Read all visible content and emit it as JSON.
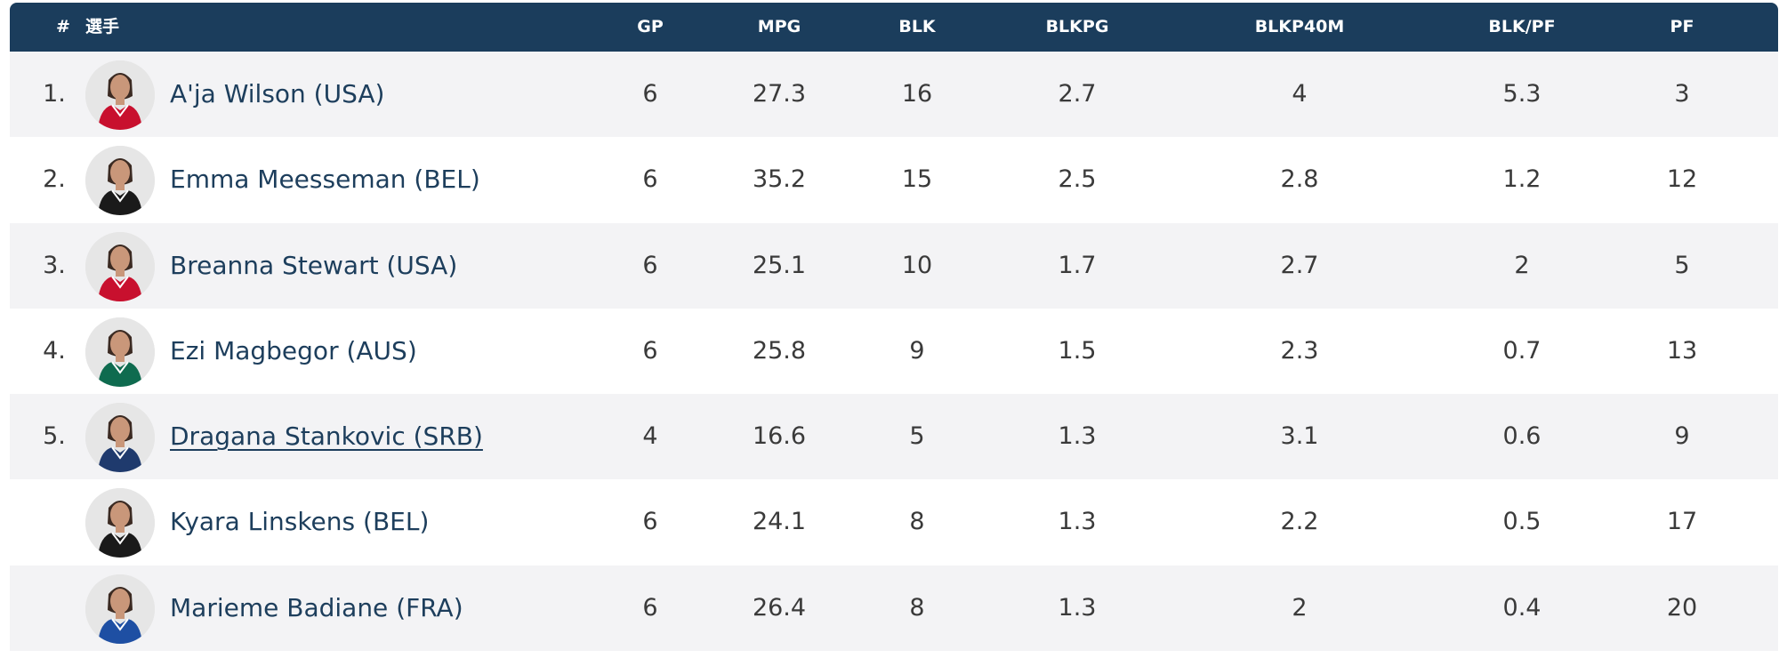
{
  "table": {
    "headers": {
      "rank": "#",
      "player": "選手",
      "gp": "GP",
      "mpg": "MPG",
      "blk": "BLK",
      "blkpg": "BLKPG",
      "blkp40m": "BLKP40M",
      "blkpf": "BLK/PF",
      "pf": "PF"
    },
    "rows": [
      {
        "rank": "1.",
        "name": "A'ja Wilson (USA)",
        "gp": "6",
        "mpg": "27.3",
        "blk": "16",
        "blkpg": "2.7",
        "blkp40m": "4",
        "blkpf": "5.3",
        "pf": "3",
        "jersey_color": "#c8102e"
      },
      {
        "rank": "2.",
        "name": "Emma Meesseman (BEL)",
        "gp": "6",
        "mpg": "35.2",
        "blk": "15",
        "blkpg": "2.5",
        "blkp40m": "2.8",
        "blkpf": "1.2",
        "pf": "12",
        "jersey_color": "#1a1a1a"
      },
      {
        "rank": "3.",
        "name": "Breanna Stewart (USA)",
        "gp": "6",
        "mpg": "25.1",
        "blk": "10",
        "blkpg": "1.7",
        "blkp40m": "2.7",
        "blkpf": "2",
        "pf": "5",
        "jersey_color": "#c8102e"
      },
      {
        "rank": "4.",
        "name": "Ezi Magbegor (AUS)",
        "gp": "6",
        "mpg": "25.8",
        "blk": "9",
        "blkpg": "1.5",
        "blkp40m": "2.3",
        "blkpf": "0.7",
        "pf": "13",
        "jersey_color": "#0f6b4f"
      },
      {
        "rank": "5.",
        "name": "Dragana Stankovic (SRB)",
        "gp": "4",
        "mpg": "16.6",
        "blk": "5",
        "blkpg": "1.3",
        "blkp40m": "3.1",
        "blkpf": "0.6",
        "pf": "9",
        "jersey_color": "#1f3a6d"
      },
      {
        "rank": "",
        "name": "Kyara Linskens (BEL)",
        "gp": "6",
        "mpg": "24.1",
        "blk": "8",
        "blkpg": "1.3",
        "blkp40m": "2.2",
        "blkpf": "0.5",
        "pf": "17",
        "jersey_color": "#1a1a1a"
      },
      {
        "rank": "",
        "name": "Marieme Badiane (FRA)",
        "gp": "6",
        "mpg": "26.4",
        "blk": "8",
        "blkpg": "1.3",
        "blkp40m": "2",
        "blkpf": "0.4",
        "pf": "20",
        "jersey_color": "#1e4fa3"
      }
    ]
  },
  "colors": {
    "header_bg": "#1b3d5c",
    "odd_row_bg": "#f3f3f5",
    "even_row_bg": "#ffffff",
    "player_link": "#1d3e5c"
  }
}
